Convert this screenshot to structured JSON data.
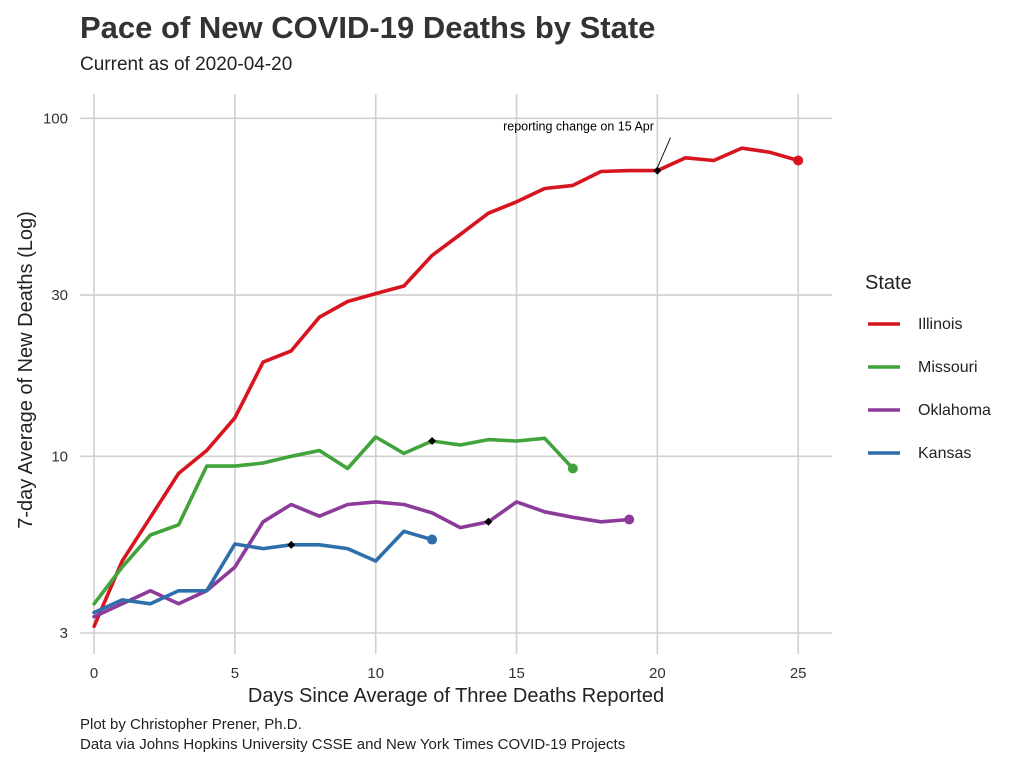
{
  "chart_data": {
    "type": "line",
    "title": "Pace of New COVID-19 Deaths by State",
    "subtitle": "Current as of 2020-04-20",
    "xlabel": "Days Since Average of Three Deaths Reported",
    "ylabel": "7-day Average of New Deaths (Log)",
    "y_scale": "log",
    "xlim": [
      -0.5,
      26.2
    ],
    "ylim": [
      2.6,
      118
    ],
    "x_ticks": [
      0,
      5,
      10,
      15,
      20,
      25
    ],
    "x_tick_labels": [
      "0",
      "5",
      "10",
      "15",
      "20",
      "25"
    ],
    "y_ticks": [
      3,
      10,
      30,
      100
    ],
    "y_tick_labels": [
      "3",
      "10",
      "30",
      "100"
    ],
    "grid": true,
    "legend": {
      "title": "State",
      "position": "right"
    },
    "series": [
      {
        "name": "Illinois",
        "color": "#d7151f",
        "x": [
          0,
          1,
          2,
          3,
          4,
          5,
          6,
          7,
          8,
          9,
          10,
          11,
          12,
          13,
          14,
          15,
          16,
          17,
          18,
          19,
          20,
          21,
          22,
          23,
          24,
          25
        ],
        "y": [
          3.14,
          4.9,
          6.6,
          8.9,
          10.4,
          13.0,
          19.0,
          20.5,
          25.8,
          28.7,
          30.3,
          31.9,
          39.3,
          45.3,
          52.4,
          56.6,
          62.0,
          63.3,
          69.6,
          70.0,
          70.0,
          76.4,
          75.0,
          81.6,
          79.3,
          75.0
        ],
        "markers": [
          {
            "x": 20,
            "y": 70.0
          }
        ],
        "end_point": {
          "x": 25,
          "y": 75.0
        }
      },
      {
        "name": "Missouri",
        "color": "#41a33c",
        "x": [
          0,
          1,
          2,
          3,
          4,
          5,
          6,
          7,
          8,
          9,
          10,
          11,
          12,
          13,
          14,
          15,
          16,
          17
        ],
        "y": [
          3.66,
          4.7,
          5.85,
          6.27,
          9.35,
          9.35,
          9.55,
          10.0,
          10.4,
          9.2,
          11.4,
          10.2,
          11.1,
          10.8,
          11.2,
          11.1,
          11.3,
          9.2
        ],
        "markers": [
          {
            "x": 12,
            "y": 11.1
          }
        ],
        "end_point": {
          "x": 17,
          "y": 9.2
        }
      },
      {
        "name": "Oklahoma",
        "color": "#8c3b9a",
        "x": [
          0,
          1,
          2,
          3,
          4,
          5,
          6,
          7,
          8,
          9,
          10,
          11,
          12,
          13,
          14,
          15,
          16,
          17,
          18,
          19
        ],
        "y": [
          3.35,
          3.66,
          4.0,
          3.66,
          4.0,
          4.7,
          6.4,
          7.2,
          6.65,
          7.2,
          7.33,
          7.2,
          6.8,
          6.15,
          6.4,
          7.33,
          6.85,
          6.6,
          6.4,
          6.5
        ],
        "markers": [
          {
            "x": 14,
            "y": 6.4
          }
        ],
        "end_point": {
          "x": 19,
          "y": 6.5
        }
      },
      {
        "name": "Kansas",
        "color": "#2e6fab",
        "x": [
          0,
          1,
          2,
          3,
          4,
          5,
          6,
          7,
          8,
          9,
          10,
          11,
          12
        ],
        "y": [
          3.45,
          3.76,
          3.66,
          4.0,
          4.0,
          5.5,
          5.33,
          5.47,
          5.47,
          5.33,
          4.9,
          6.0,
          5.67
        ],
        "markers": [
          {
            "x": 7,
            "y": 5.47
          }
        ],
        "end_point": {
          "x": 12,
          "y": 5.67
        }
      }
    ],
    "annotations": [
      {
        "text": "reporting change on 15 Apr",
        "target": {
          "x": 20,
          "y": 70.0
        },
        "label_at": {
          "x": 17.2,
          "y": 92
        }
      }
    ]
  },
  "caption": {
    "line1": "Plot by Christopher Prener, Ph.D.",
    "line2": "Data via Johns Hopkins University CSSE and New York Times COVID-19 Projects"
  }
}
